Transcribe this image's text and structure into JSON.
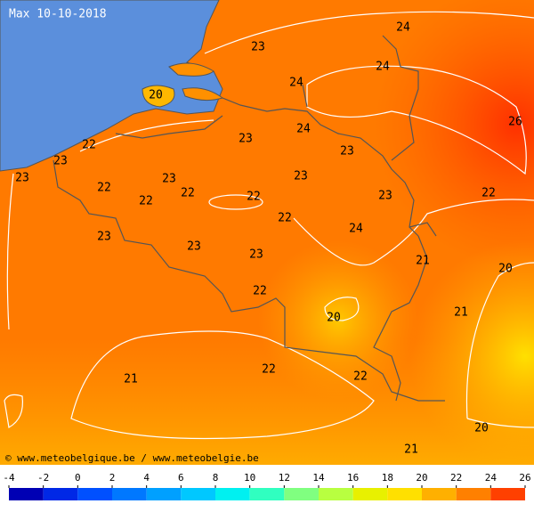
{
  "header": {
    "title": "Max 10-10-2018"
  },
  "map": {
    "labels": [
      23,
      24,
      24,
      24,
      20,
      26,
      22,
      23,
      24,
      23,
      23,
      23,
      23,
      23,
      22,
      22,
      22,
      22,
      23,
      22,
      22,
      24,
      23,
      23,
      23,
      21,
      20,
      22,
      21,
      20,
      22,
      22,
      21,
      20,
      21
    ],
    "credit": "© www.meteobelgique.be / www.meteobelgie.be"
  },
  "legend": {
    "ticks": [
      -4,
      -2,
      0,
      2,
      4,
      6,
      8,
      10,
      12,
      14,
      16,
      18,
      20,
      22,
      24,
      26
    ],
    "colors": [
      "#0000b4",
      "#0028e6",
      "#0050ff",
      "#0078ff",
      "#00a0ff",
      "#00c8ff",
      "#00f0f0",
      "#30ffc0",
      "#80ff80",
      "#b8ff40",
      "#e8f000",
      "#ffe000",
      "#ffb000",
      "#ff8000",
      "#ff4000"
    ]
  }
}
